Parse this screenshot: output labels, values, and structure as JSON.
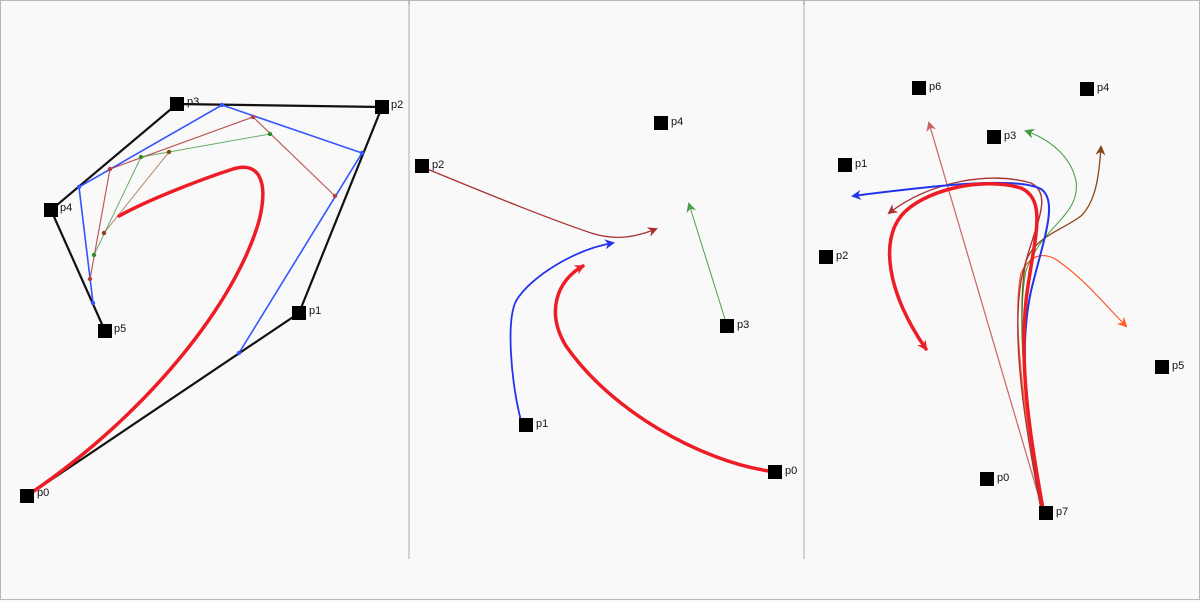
{
  "panels": [
    {
      "points": [
        {
          "label": "p0"
        },
        {
          "label": "p1"
        },
        {
          "label": "p2"
        },
        {
          "label": "p3"
        },
        {
          "label": "p4"
        },
        {
          "label": "p5"
        }
      ]
    },
    {
      "points": [
        {
          "label": "p0"
        },
        {
          "label": "p1"
        },
        {
          "label": "p2"
        },
        {
          "label": "p3"
        },
        {
          "label": "p4"
        }
      ]
    },
    {
      "points": [
        {
          "label": "p0"
        },
        {
          "label": "p1"
        },
        {
          "label": "p2"
        },
        {
          "label": "p3"
        },
        {
          "label": "p4"
        },
        {
          "label": "p5"
        },
        {
          "label": "p6"
        },
        {
          "label": "p7"
        }
      ]
    }
  ],
  "colors": {
    "background": "#f9f9f9",
    "control_polygon": "#111111",
    "curve": "#ee1c25",
    "level_1": "#3355ff",
    "level_2": "#b34040",
    "level_3": "#2e8b2e",
    "level_4": "#8b4513",
    "divider": "#aaaaaa"
  }
}
